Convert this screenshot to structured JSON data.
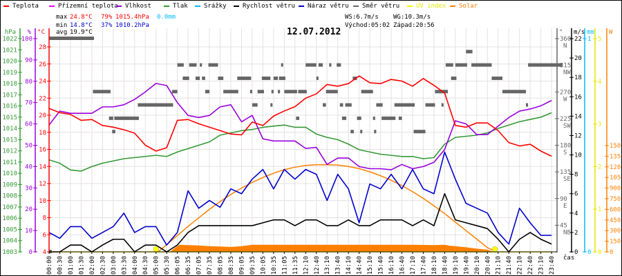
{
  "legend": [
    {
      "label": "Teplota",
      "color": "#ff0000"
    },
    {
      "label": "Přízemní teplota",
      "color": "#ff00ff"
    },
    {
      "label": "Vlhkost",
      "color": "#9900dd"
    },
    {
      "label": "Tlak",
      "color": "#339933"
    },
    {
      "label": "Srážky",
      "color": "#00bbff"
    },
    {
      "label": "Rychlost větru",
      "color": "#000000"
    },
    {
      "label": "Náraz větru",
      "color": "#0000cc"
    },
    {
      "label": "Směr větru",
      "color": "#666666"
    },
    {
      "label": "UV index",
      "color": "#ffff00"
    },
    {
      "label": "Solar",
      "color": "#ff8000"
    }
  ],
  "stats": {
    "max_label": "max",
    "max_temp": "24.8°C",
    "max_hum": "79%",
    "max_press": "1015.4hPa",
    "rain": "0.0mm",
    "min_label": "min",
    "min_temp": "14.8°C",
    "min_hum": "37%",
    "min_press": "1010.2hPa",
    "avg_label": "avg",
    "avg_temp": "19.9°C",
    "ws": "WS:6.7m/s",
    "wg": "WG:10.3m/s",
    "sunrise": "Východ:05:02",
    "sunset": "Západ:20:56"
  },
  "chart_data": {
    "type": "line",
    "title": "12.07.2012",
    "xlabel": "čas",
    "x_ticks": [
      "00:00",
      "00:30",
      "01:00",
      "01:30",
      "02:00",
      "02:30",
      "03:00",
      "03:30",
      "04:00",
      "04:30",
      "05:00",
      "05:30",
      "06:05",
      "06:35",
      "07:05",
      "07:35",
      "08:05",
      "08:35",
      "09:05",
      "09:35",
      "10:05",
      "10:35",
      "11:05",
      "11:35",
      "12:10",
      "12:40",
      "13:10",
      "13:40",
      "14:10",
      "14:40",
      "15:10",
      "15:40",
      "16:10",
      "16:40",
      "17:10",
      "17:40",
      "18:10",
      "18:40",
      "19:10",
      "19:40",
      "20:10",
      "20:40",
      "21:10",
      "21:40",
      "22:10",
      "22:40",
      "23:10",
      "23:40"
    ],
    "axes": {
      "pressure": {
        "unit": "hPa",
        "range": [
          1003,
          1022
        ],
        "ticks": [
          1003,
          1004,
          1005,
          1006,
          1007,
          1008,
          1009,
          1010,
          1011,
          1012,
          1013,
          1014,
          1015,
          1016,
          1017,
          1018,
          1019,
          1020,
          1021,
          1022
        ]
      },
      "humidity": {
        "unit": "%",
        "range": [
          0,
          100
        ],
        "ticks": [
          0,
          10,
          20,
          30,
          40,
          50,
          60,
          70,
          80,
          90,
          100
        ]
      },
      "temperature": {
        "unit": "°C",
        "range": [
          4,
          29
        ],
        "ticks": [
          4,
          6,
          8,
          10,
          12,
          14,
          16,
          18,
          20,
          22,
          24,
          26,
          28
        ]
      },
      "direction": {
        "unit": "°",
        "range": [
          0,
          360
        ],
        "ticks": [
          {
            "v": 45,
            "c": "NE"
          },
          {
            "v": 90,
            "c": "E"
          },
          {
            "v": 135,
            "c": "SE"
          },
          {
            "v": 180,
            "c": "S"
          },
          {
            "v": 225,
            "c": "SW"
          },
          {
            "v": 270,
            "c": "W"
          },
          {
            "v": 315,
            "c": "NW"
          },
          {
            "v": 360,
            "c": "N"
          }
        ]
      },
      "wind": {
        "unit": "m/s",
        "range": [
          0,
          22
        ],
        "ticks": [
          0,
          2,
          4,
          6,
          8,
          10,
          12,
          14,
          16,
          18,
          20,
          22
        ]
      },
      "rain": {
        "unit": "mm",
        "range": [
          0,
          1
        ],
        "ticks": [
          0,
          1
        ]
      },
      "uv": {
        "unit": "",
        "range": [
          0,
          5
        ],
        "ticks": [
          0,
          1,
          2,
          3,
          4,
          5
        ]
      },
      "solar": {
        "unit": "W",
        "range": [
          0,
          1500
        ],
        "ticks": [
          0,
          150,
          300,
          450,
          600,
          750,
          900,
          1050,
          1200,
          1350,
          1500
        ]
      }
    },
    "series": [
      {
        "name": "Teplota",
        "axis": "temperature",
        "values": [
          20.8,
          20.3,
          20.1,
          19.4,
          19.5,
          18.8,
          18.6,
          18.3,
          17.9,
          16.5,
          15.8,
          16.2,
          19.4,
          19.5,
          19.0,
          18.6,
          18.2,
          17.8,
          17.7,
          19.2,
          18.8,
          19.9,
          20.5,
          21.0,
          22.0,
          22.5,
          23.6,
          23.4,
          23.7,
          24.6,
          23.8,
          23.7,
          24.2,
          24.0,
          23.4,
          24.3,
          23.5,
          22.6,
          18.8,
          18.6,
          19.1,
          19.1,
          18.2,
          16.8,
          16.4,
          16.6,
          15.8,
          15.2
        ]
      },
      {
        "name": "Vlhkost",
        "axis": "humidity",
        "values": [
          59.5,
          66,
          65,
          65,
          65,
          68,
          68,
          69,
          71.5,
          75,
          79,
          78,
          70,
          64,
          63,
          64,
          68,
          69,
          61,
          64,
          53,
          52,
          52,
          52,
          48.5,
          49,
          41,
          44,
          44,
          40,
          39,
          39,
          38.5,
          41,
          39,
          40,
          42,
          48,
          61.5,
          60,
          55,
          55,
          59,
          63,
          66,
          67,
          68.5,
          71
        ]
      },
      {
        "name": "Tlak",
        "axis": "pressure",
        "values": [
          1011.2,
          1010.9,
          1010.3,
          1010.2,
          1010.6,
          1010.9,
          1011.1,
          1011.3,
          1011.4,
          1011.5,
          1011.6,
          1011.5,
          1011.9,
          1012.2,
          1012.5,
          1012.8,
          1013.4,
          1013.6,
          1013.8,
          1013.9,
          1014.1,
          1014.2,
          1014.3,
          1014.1,
          1014.1,
          1013.5,
          1013.2,
          1013.0,
          1012.6,
          1012.1,
          1011.9,
          1011.7,
          1011.6,
          1011.5,
          1011.5,
          1011.3,
          1011.4,
          1012.6,
          1013.2,
          1013.3,
          1013.4,
          1013.6,
          1014.0,
          1014.3,
          1014.6,
          1014.8,
          1015.0,
          1015.4
        ]
      },
      {
        "name": "Rychlost větru",
        "axis": "wind",
        "values": [
          0,
          0,
          0.7,
          0.7,
          0,
          0.7,
          1.3,
          1.3,
          0,
          0.7,
          0.7,
          0,
          0.7,
          2,
          2.7,
          2.7,
          2.7,
          2.7,
          2.7,
          2.7,
          3,
          3.3,
          3.3,
          2.7,
          3.3,
          3.3,
          2.7,
          2.7,
          3.3,
          2.7,
          2.7,
          3.3,
          3.3,
          3.3,
          2.7,
          3.3,
          2.7,
          6,
          3.3,
          3,
          2.7,
          2.4,
          1.3,
          0,
          1.3,
          2,
          1.3,
          0.8
        ]
      },
      {
        "name": "Náraz větru",
        "axis": "wind",
        "values": [
          2,
          1.4,
          2.6,
          2.6,
          1.4,
          2,
          2.6,
          4,
          2,
          2.6,
          2.6,
          0.7,
          2,
          6.3,
          4.5,
          5.3,
          4.6,
          6.5,
          6,
          7.5,
          8.5,
          6.5,
          8.5,
          7.5,
          8.5,
          8,
          5.3,
          8,
          6.5,
          3,
          7,
          6.5,
          8,
          6.5,
          8.5,
          6.5,
          6,
          10.3,
          7.5,
          5,
          4.5,
          4,
          2,
          0.8,
          4.5,
          3,
          1.7,
          1.7
        ]
      },
      {
        "name": "UV index",
        "axis": "uv",
        "values": [
          0,
          0,
          0,
          0,
          0,
          0,
          0,
          0,
          0,
          0,
          0,
          0,
          0,
          0,
          0,
          0,
          0,
          0,
          0,
          0,
          0,
          0,
          0,
          0,
          0,
          0,
          0,
          0,
          0,
          0,
          0,
          0,
          0,
          0,
          0,
          0,
          0,
          0,
          0,
          0,
          0,
          0,
          0,
          0,
          0,
          0,
          0,
          0
        ]
      }
    ],
    "solar_theoretical": [
      [
        10.2,
        0
      ],
      [
        11,
        100
      ],
      [
        12,
        230
      ],
      [
        13,
        360
      ],
      [
        14,
        480
      ],
      [
        15,
        600
      ],
      [
        16,
        710
      ],
      [
        17,
        810
      ],
      [
        18,
        900
      ],
      [
        19,
        980
      ],
      [
        20,
        1050
      ],
      [
        21,
        1110
      ],
      [
        22,
        1160
      ],
      [
        23,
        1195
      ],
      [
        24,
        1220
      ],
      [
        25,
        1230
      ],
      [
        26,
        1230
      ],
      [
        27,
        1225
      ],
      [
        28,
        1205
      ],
      [
        29,
        1175
      ],
      [
        30,
        1130
      ],
      [
        31,
        1075
      ],
      [
        32,
        1010
      ],
      [
        33,
        935
      ],
      [
        34,
        850
      ],
      [
        35,
        755
      ],
      [
        36,
        650
      ],
      [
        37,
        540
      ],
      [
        38,
        420
      ],
      [
        39,
        300
      ],
      [
        40,
        180
      ],
      [
        41,
        60
      ],
      [
        41.8,
        0
      ]
    ],
    "solar_measured": [
      [
        11.3,
        0
      ],
      [
        11.8,
        60
      ],
      [
        12.2,
        100
      ],
      [
        13,
        95
      ],
      [
        14,
        90
      ],
      [
        15,
        80
      ],
      [
        16,
        75
      ],
      [
        17,
        70
      ],
      [
        18,
        80
      ],
      [
        19,
        100
      ],
      [
        20,
        100
      ],
      [
        22,
        100
      ],
      [
        24,
        100
      ],
      [
        26,
        100
      ],
      [
        28,
        100
      ],
      [
        30,
        100
      ],
      [
        32,
        100
      ],
      [
        34,
        100
      ],
      [
        36,
        95
      ],
      [
        37,
        100
      ],
      [
        37.5,
        85
      ],
      [
        38,
        80
      ],
      [
        39,
        65
      ],
      [
        40,
        45
      ],
      [
        41,
        30
      ],
      [
        41.6,
        0
      ]
    ],
    "sun_markers": [
      {
        "label": "sunrise",
        "slot": 10
      },
      {
        "label": "sunset",
        "slot": 41.7
      }
    ],
    "wind_direction_segments": [
      [
        0,
        4.2,
        360
      ],
      [
        4.1,
        5.75,
        270
      ],
      [
        5.6,
        6.0,
        225
      ],
      [
        6.1,
        8.4,
        225
      ],
      [
        5.9,
        6.2,
        202.5
      ],
      [
        8.3,
        11.6,
        247.5
      ],
      [
        11.5,
        12,
        270
      ],
      [
        12,
        12.6,
        315
      ],
      [
        12.5,
        13.1,
        292.5
      ],
      [
        13.1,
        13.8,
        315
      ],
      [
        13.7,
        14.1,
        292.5
      ],
      [
        14.1,
        14.3,
        315
      ],
      [
        14.3,
        14.6,
        292.5
      ],
      [
        14.6,
        15,
        270
      ],
      [
        14.9,
        15.8,
        315
      ],
      [
        15.8,
        16.3,
        292.5
      ],
      [
        16.3,
        17.7,
        270
      ],
      [
        17.6,
        18.9,
        292.5
      ],
      [
        18.8,
        19,
        270
      ],
      [
        19,
        19.5,
        247.5
      ],
      [
        19.5,
        20.1,
        270
      ],
      [
        19.9,
        20.7,
        292.5
      ],
      [
        20.7,
        20.9,
        247.5
      ],
      [
        20.8,
        21,
        270
      ],
      [
        21,
        21.4,
        292.5
      ],
      [
        21.4,
        21.6,
        270
      ],
      [
        21.5,
        22.1,
        292.5
      ],
      [
        21.7,
        21.9,
        315
      ],
      [
        22,
        23.2,
        270
      ],
      [
        23.1,
        23.4,
        225
      ],
      [
        23.3,
        24.1,
        270
      ],
      [
        24,
        25,
        315
      ],
      [
        25,
        25.2,
        292.5
      ],
      [
        25.2,
        25.6,
        315
      ],
      [
        25.6,
        25.9,
        247.5
      ],
      [
        25.9,
        27,
        270
      ],
      [
        26.2,
        26.4,
        315
      ],
      [
        26.9,
        27.3,
        315
      ],
      [
        27.2,
        27.5,
        247.5
      ],
      [
        27.4,
        27.8,
        225
      ],
      [
        27.7,
        28.3,
        247.5
      ],
      [
        28.2,
        28.5,
        202.5
      ],
      [
        28.4,
        28.8,
        292.5
      ],
      [
        28.8,
        29.2,
        225
      ],
      [
        29.1,
        29.3,
        202.5
      ],
      [
        29.2,
        30.3,
        270
      ],
      [
        30.3,
        30.5,
        225
      ],
      [
        30.4,
        30.6,
        202.5
      ],
      [
        30.6,
        31.2,
        247.5
      ],
      [
        31.1,
        32.4,
        225
      ],
      [
        32.3,
        34.2,
        247.5
      ],
      [
        32.7,
        33,
        225
      ],
      [
        34.1,
        35.2,
        202.5
      ],
      [
        35.2,
        36.1,
        247.5
      ],
      [
        36.1,
        37.3,
        270
      ],
      [
        36.7,
        36.9,
        247.5
      ],
      [
        37.1,
        37.8,
        315
      ],
      [
        37.6,
        38.1,
        292.5
      ],
      [
        38,
        39.1,
        315
      ],
      [
        39,
        39.6,
        337.5
      ],
      [
        39.5,
        41.4,
        315
      ],
      [
        41.4,
        42.4,
        292.5
      ],
      [
        42.4,
        44.6,
        270
      ],
      [
        44.6,
        44.8,
        247.5
      ],
      [
        44.8,
        48,
        315
      ],
      [
        0,
        0.25,
        0
      ]
    ],
    "grid": true,
    "legend_position": "top"
  },
  "colors": {
    "temperature": "#ff0000",
    "humidity": "#9900dd",
    "pressure": "#339933",
    "rain": "#00bbff",
    "wind": "#000000",
    "gust": "#0000cc",
    "direction": "#666666",
    "uv": "#ffff00",
    "solar": "#ff8000",
    "grid": "#e6e0e0"
  }
}
